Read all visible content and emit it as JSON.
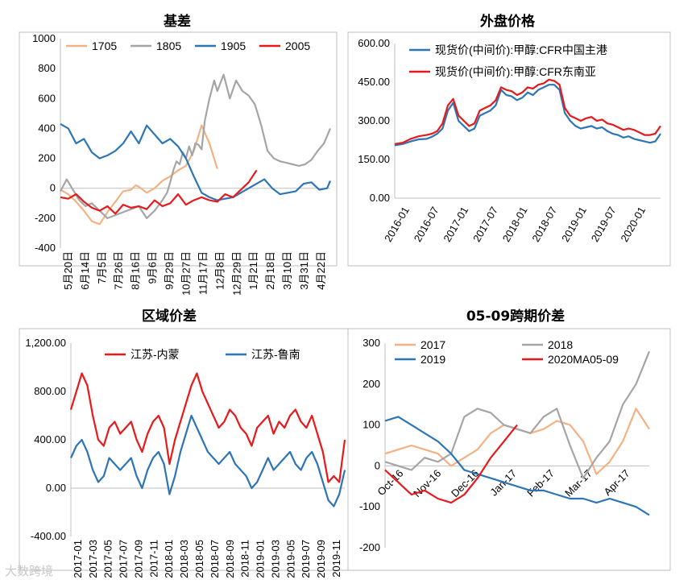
{
  "watermark": "大数跨境",
  "chart_data": [
    {
      "type": "line",
      "title": "基差",
      "ylim": [
        -400,
        1000
      ],
      "yticks": [
        "1000",
        "800",
        "600",
        "400",
        "200",
        "0",
        "-200",
        "-400"
      ],
      "xticks": [
        "5月20日",
        "6月14日",
        "7月5日",
        "7月26日",
        "8月16日",
        "9月6日",
        "9月29日",
        "10月27日",
        "11月17日",
        "12月8日",
        "12月29日",
        "1月21日",
        "2月18日",
        "3月10日",
        "3月31日",
        "4月22日"
      ],
      "legend": [
        "1705",
        "1805",
        "1905",
        "2005"
      ],
      "colors": [
        "#f4b183",
        "#a5a5a5",
        "#2e75b6",
        "#e8191b"
      ],
      "series": [
        {
          "name": "1705",
          "x": [
            0,
            5,
            10,
            15,
            20,
            25,
            30,
            35,
            40,
            45,
            48,
            50,
            55,
            60,
            65,
            70,
            75,
            80,
            85,
            90,
            95,
            100
          ],
          "values": [
            -10,
            -40,
            -90,
            -150,
            -220,
            -240,
            -160,
            -90,
            -20,
            -10,
            20,
            10,
            -30,
            0,
            50,
            80,
            120,
            150,
            250,
            420,
            300,
            130
          ]
        },
        {
          "name": "1805",
          "x": [
            0,
            4,
            8,
            12,
            16,
            20,
            25,
            30,
            35,
            40,
            45,
            50,
            55,
            60,
            65,
            68,
            70,
            72,
            74,
            76,
            78,
            80,
            82,
            84,
            86,
            88,
            90,
            92,
            95,
            98,
            100,
            104,
            108,
            112,
            116,
            120,
            124,
            128,
            132,
            136,
            140,
            144,
            148,
            152,
            156,
            160,
            164,
            168,
            172
          ],
          "values": [
            -20,
            60,
            -10,
            -80,
            -120,
            -100,
            -150,
            -200,
            -180,
            -160,
            -140,
            -120,
            -200,
            -150,
            -80,
            -30,
            40,
            120,
            180,
            160,
            240,
            200,
            280,
            220,
            300,
            290,
            260,
            450,
            600,
            720,
            650,
            760,
            600,
            720,
            650,
            620,
            560,
            420,
            250,
            200,
            180,
            170,
            160,
            150,
            160,
            190,
            250,
            300,
            400
          ]
        },
        {
          "name": "1905",
          "x": [
            0,
            5,
            10,
            15,
            20,
            25,
            30,
            35,
            40,
            45,
            50,
            55,
            60,
            65,
            70,
            75,
            80,
            85,
            90,
            95,
            100,
            105,
            110,
            115,
            120,
            125,
            130,
            135,
            140,
            145,
            150,
            155,
            160,
            165,
            170,
            172
          ],
          "values": [
            430,
            400,
            300,
            330,
            240,
            200,
            220,
            250,
            300,
            380,
            300,
            420,
            360,
            300,
            330,
            280,
            200,
            80,
            -30,
            -60,
            -80,
            -70,
            -60,
            -30,
            0,
            30,
            60,
            0,
            -40,
            -30,
            -20,
            30,
            40,
            -10,
            0,
            50
          ]
        },
        {
          "name": "2005",
          "x": [
            0,
            5,
            10,
            15,
            20,
            25,
            30,
            35,
            40,
            45,
            50,
            55,
            60,
            65,
            70,
            75,
            80,
            85,
            90,
            95,
            100,
            105,
            110,
            115,
            120,
            125
          ],
          "values": [
            -60,
            -70,
            -40,
            -90,
            -130,
            -150,
            -120,
            -170,
            -110,
            -130,
            -120,
            -140,
            -80,
            -120,
            -100,
            -40,
            -110,
            -80,
            -60,
            -80,
            -90,
            -40,
            -60,
            -10,
            40,
            120
          ]
        }
      ]
    },
    {
      "type": "line",
      "title": "外盘价格",
      "ylim": [
        0,
        600
      ],
      "yticks": [
        "600.00",
        "450.00",
        "300.00",
        "150.00",
        "0.00"
      ],
      "xticks": [
        "2016-01",
        "2016-07",
        "2017-01",
        "2017-07",
        "2018-01",
        "2018-07",
        "2019-01",
        "2019-07",
        "2020-01"
      ],
      "legend": [
        "现货价(中间价):甲醇:CFR中国主港",
        "现货价(中间价):甲醇:CFR东南亚"
      ],
      "colors": [
        "#2e75b6",
        "#e8191b"
      ],
      "series": [
        {
          "name": "现货价(中间价):甲醇:CFR中国主港",
          "x": [
            0,
            3,
            6,
            9,
            12,
            14,
            16,
            18,
            20,
            22,
            24,
            26,
            28,
            30,
            32,
            34,
            36,
            38,
            40,
            42,
            44,
            46,
            48,
            50,
            52,
            54,
            56,
            58,
            60,
            62,
            64,
            66,
            68,
            70,
            72,
            74,
            76,
            78,
            80,
            82,
            84,
            86,
            88,
            90,
            92,
            94,
            96,
            98,
            100
          ],
          "values": [
            205,
            210,
            220,
            228,
            230,
            238,
            250,
            270,
            340,
            370,
            300,
            280,
            260,
            270,
            320,
            330,
            340,
            360,
            420,
            400,
            395,
            380,
            390,
            410,
            400,
            420,
            430,
            440,
            440,
            420,
            330,
            300,
            280,
            270,
            275,
            280,
            270,
            275,
            260,
            250,
            245,
            235,
            240,
            230,
            225,
            220,
            215,
            220,
            250
          ]
        },
        {
          "name": "现货价(中间价):甲醇:CFR东南亚",
          "x": [
            0,
            3,
            6,
            9,
            12,
            14,
            16,
            18,
            20,
            22,
            24,
            26,
            28,
            30,
            32,
            34,
            36,
            38,
            40,
            42,
            44,
            46,
            48,
            50,
            52,
            54,
            56,
            58,
            60,
            62,
            64,
            66,
            68,
            70,
            72,
            74,
            76,
            78,
            80,
            82,
            84,
            86,
            88,
            90,
            92,
            94,
            96,
            98,
            100
          ],
          "values": [
            210,
            215,
            230,
            240,
            245,
            250,
            260,
            290,
            360,
            385,
            320,
            300,
            280,
            290,
            340,
            350,
            360,
            380,
            430,
            420,
            415,
            400,
            410,
            430,
            425,
            440,
            445,
            460,
            455,
            440,
            350,
            320,
            310,
            300,
            310,
            315,
            300,
            305,
            290,
            285,
            275,
            265,
            270,
            265,
            255,
            245,
            245,
            250,
            280
          ]
        }
      ]
    },
    {
      "type": "line",
      "title": "区域价差",
      "ylim": [
        -400,
        1200
      ],
      "yticks": [
        "1,200.00",
        "800.00",
        "400.00",
        "0.00",
        "-400.00"
      ],
      "xticks": [
        "2017-01",
        "2017-03",
        "2017-05",
        "2017-07",
        "2017-09",
        "2017-11",
        "2018-01",
        "2018-03",
        "2018-05",
        "2018-07",
        "2018-09",
        "2018-11",
        "2019-01",
        "2019-03",
        "2019-05",
        "2019-07",
        "2019-09",
        "2019-11"
      ],
      "legend": [
        "江苏-内蒙",
        "江苏-鲁南"
      ],
      "colors": [
        "#e8191b",
        "#2e75b6"
      ],
      "series": [
        {
          "name": "江苏-内蒙",
          "x": [
            0,
            2,
            4,
            6,
            8,
            10,
            12,
            14,
            16,
            18,
            20,
            22,
            24,
            26,
            28,
            30,
            32,
            34,
            36,
            38,
            40,
            42,
            44,
            46,
            48,
            50,
            52,
            54,
            56,
            58,
            60,
            62,
            64,
            66,
            68,
            70,
            72,
            74,
            76,
            78,
            80,
            82,
            84,
            86,
            88,
            90,
            92,
            94,
            96,
            98,
            100
          ],
          "values": [
            650,
            800,
            950,
            850,
            600,
            400,
            350,
            500,
            550,
            450,
            500,
            550,
            400,
            300,
            450,
            550,
            600,
            500,
            200,
            400,
            550,
            700,
            850,
            950,
            800,
            700,
            600,
            500,
            550,
            650,
            600,
            500,
            450,
            350,
            500,
            550,
            600,
            450,
            550,
            500,
            600,
            650,
            550,
            500,
            600,
            450,
            300,
            50,
            100,
            50,
            400
          ]
        },
        {
          "name": "江苏-鲁南",
          "x": [
            0,
            2,
            4,
            6,
            8,
            10,
            12,
            14,
            16,
            18,
            20,
            22,
            24,
            26,
            28,
            30,
            32,
            34,
            36,
            38,
            40,
            42,
            44,
            46,
            48,
            50,
            52,
            54,
            56,
            58,
            60,
            62,
            64,
            66,
            68,
            70,
            72,
            74,
            76,
            78,
            80,
            82,
            84,
            86,
            88,
            90,
            92,
            94,
            96,
            98,
            100
          ],
          "values": [
            250,
            350,
            400,
            300,
            150,
            50,
            100,
            250,
            200,
            150,
            200,
            250,
            100,
            0,
            150,
            250,
            300,
            200,
            -50,
            100,
            300,
            450,
            600,
            500,
            400,
            300,
            250,
            200,
            250,
            300,
            200,
            150,
            100,
            0,
            50,
            150,
            250,
            150,
            200,
            250,
            300,
            200,
            150,
            250,
            300,
            200,
            50,
            -100,
            -150,
            -50,
            150
          ]
        }
      ]
    },
    {
      "type": "line",
      "title": "05-09跨期价差",
      "ylim": [
        -200,
        300
      ],
      "yticks": [
        "300",
        "200",
        "100",
        "0",
        "-100",
        "-200"
      ],
      "xticks": [
        "Oct-16",
        "Nov-16",
        "Dec-16",
        "Jan-17",
        "Feb-17",
        "Mar-17",
        "Apr-17"
      ],
      "legend": [
        "2017",
        "2018",
        "2019",
        "2020MA05-09"
      ],
      "colors": [
        "#f4b183",
        "#a5a5a5",
        "#2e75b6",
        "#e8191b"
      ],
      "series": [
        {
          "name": "2017",
          "x": [
            0,
            5,
            10,
            15,
            20,
            25,
            30,
            35,
            40,
            45,
            50,
            55,
            60,
            65,
            70,
            75,
            80,
            85,
            90,
            95,
            100
          ],
          "values": [
            30,
            40,
            50,
            40,
            30,
            0,
            20,
            40,
            80,
            100,
            90,
            80,
            90,
            110,
            100,
            60,
            -20,
            10,
            60,
            140,
            90
          ]
        },
        {
          "name": "2018",
          "x": [
            0,
            5,
            10,
            15,
            20,
            25,
            30,
            35,
            40,
            45,
            50,
            55,
            60,
            65,
            70,
            75,
            80,
            85,
            90,
            95,
            100
          ],
          "values": [
            10,
            0,
            -10,
            20,
            10,
            30,
            120,
            140,
            130,
            100,
            90,
            80,
            120,
            140,
            50,
            -30,
            20,
            60,
            150,
            200,
            280
          ]
        },
        {
          "name": "2019",
          "x": [
            0,
            5,
            10,
            15,
            20,
            25,
            30,
            35,
            40,
            45,
            50,
            55,
            60,
            65,
            70,
            75,
            80,
            85,
            90,
            95,
            100
          ],
          "values": [
            110,
            120,
            100,
            80,
            60,
            30,
            -10,
            -20,
            -30,
            -40,
            -50,
            -60,
            -60,
            -70,
            -80,
            -80,
            -90,
            -80,
            -90,
            -100,
            -120
          ]
        },
        {
          "name": "2020MA05-09",
          "x": [
            0,
            5,
            10,
            15,
            20,
            25,
            30,
            35,
            40,
            45,
            50
          ],
          "values": [
            -10,
            -40,
            -70,
            -60,
            -80,
            -90,
            -70,
            -30,
            20,
            60,
            100
          ]
        }
      ]
    }
  ]
}
